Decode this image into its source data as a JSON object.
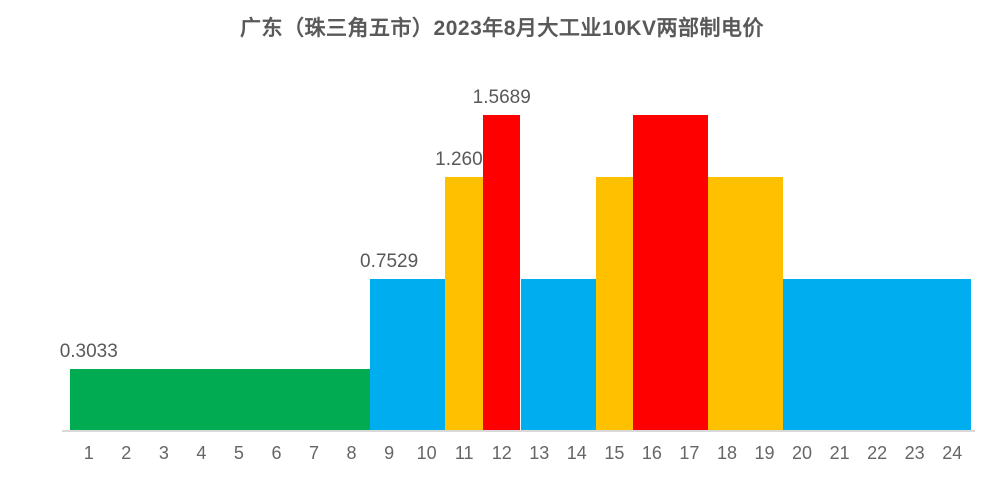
{
  "page": {
    "background": "#ffffff"
  },
  "style": {
    "title_color": "#595959",
    "value_label_color": "#595959",
    "tick_label_color": "#666666",
    "axis_line_color": "#d9d9d9"
  },
  "chart_data": {
    "type": "bar",
    "title": "广东（珠三角五市）2023年8月大工业10KV两部制电价",
    "xlabel": "",
    "ylabel": "",
    "x": [
      1,
      2,
      3,
      4,
      5,
      6,
      7,
      8,
      9,
      10,
      11,
      12,
      13,
      14,
      15,
      16,
      17,
      18,
      19,
      20,
      21,
      22,
      23,
      24
    ],
    "values": [
      0.3033,
      0.3033,
      0.3033,
      0.3033,
      0.3033,
      0.3033,
      0.3033,
      0.3033,
      0.7529,
      0.7529,
      1.2606,
      1.5689,
      0.7529,
      0.7529,
      1.2606,
      1.5689,
      1.5689,
      1.2606,
      1.2606,
      0.7529,
      0.7529,
      0.7529,
      0.7529,
      0.7529
    ],
    "bar_colors": [
      "#00AB52",
      "#00AB52",
      "#00AB52",
      "#00AB52",
      "#00AB52",
      "#00AB52",
      "#00AB52",
      "#00AB52",
      "#00AEEF",
      "#00AEEF",
      "#FFC000",
      "#FF0000",
      "#00AEEF",
      "#00AEEF",
      "#FFC000",
      "#FF0000",
      "#FF0000",
      "#FFC000",
      "#FFC000",
      "#00AEEF",
      "#00AEEF",
      "#00AEEF",
      "#00AEEF",
      "#00AEEF"
    ],
    "segments": [
      {
        "start_hour": 1,
        "end_hour": 8,
        "value": 0.3033,
        "color": "#00AB52"
      },
      {
        "start_hour": 9,
        "end_hour": 10,
        "value": 0.7529,
        "color": "#00AEEF"
      },
      {
        "start_hour": 11,
        "end_hour": 11,
        "value": 1.2606,
        "color": "#FFC000"
      },
      {
        "start_hour": 12,
        "end_hour": 12,
        "value": 1.5689,
        "color": "#FF0000"
      },
      {
        "start_hour": 13,
        "end_hour": 14,
        "value": 0.7529,
        "color": "#00AEEF"
      },
      {
        "start_hour": 15,
        "end_hour": 15,
        "value": 1.2606,
        "color": "#FFC000"
      },
      {
        "start_hour": 16,
        "end_hour": 17,
        "value": 1.5689,
        "color": "#FF0000"
      },
      {
        "start_hour": 18,
        "end_hour": 19,
        "value": 1.2606,
        "color": "#FFC000"
      },
      {
        "start_hour": 20,
        "end_hour": 24,
        "value": 0.7529,
        "color": "#00AEEF"
      }
    ],
    "data_labels": [
      {
        "hour": 1,
        "text": "0.3033"
      },
      {
        "hour": 9,
        "text": "0.7529"
      },
      {
        "hour": 11,
        "text": "1.2606"
      },
      {
        "hour": 12,
        "text": "1.5689"
      }
    ],
    "ylim": [
      0,
      1.6
    ],
    "grid": false,
    "legend": null
  }
}
